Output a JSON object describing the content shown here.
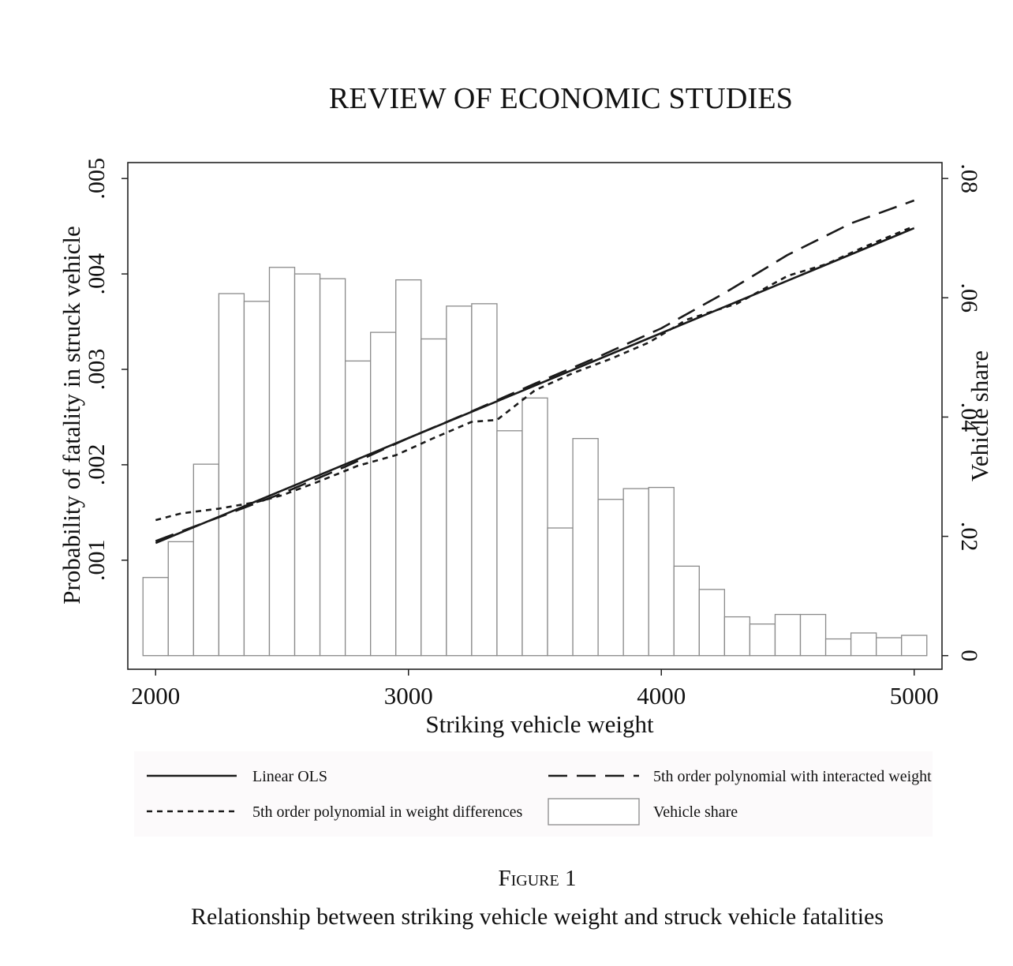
{
  "header": {
    "journal_title": "REVIEW OF ECONOMIC STUDIES"
  },
  "figure": {
    "number": "Figure 1",
    "caption": "Relationship between striking vehicle weight and struck vehicle fatalities"
  },
  "chart_data": {
    "type": "bar",
    "xlabel": "Striking vehicle weight",
    "ylabel_left": "Probability of fatality in struck vehicle",
    "ylabel_right": "Vehicle share",
    "xlim": [
      1890,
      5110
    ],
    "ylim_left": [
      -0.000143,
      0.005167
    ],
    "ylim_right": [
      -0.002286,
      0.082667
    ],
    "x_ticks": [
      2000,
      3000,
      4000,
      5000
    ],
    "x_tick_labels": [
      "2000",
      "3000",
      "4000",
      "5000"
    ],
    "y_left_ticks": [
      0.001,
      0.002,
      0.003,
      0.004,
      0.005
    ],
    "y_left_tick_labels": [
      ".001",
      ".002",
      ".003",
      ".004",
      ".005"
    ],
    "y_right_ticks": [
      0,
      0.02,
      0.04,
      0.06,
      0.08
    ],
    "y_right_tick_labels": [
      "0",
      ".02",
      ".04",
      ".06",
      ".08"
    ],
    "histogram": {
      "name": "Vehicle share",
      "bin_width": 100,
      "bin_starts": [
        1950,
        2050,
        2150,
        2250,
        2350,
        2450,
        2550,
        2650,
        2750,
        2850,
        2950,
        3050,
        3150,
        3250,
        3350,
        3450,
        3550,
        3650,
        3750,
        3850,
        3950,
        4050,
        4150,
        4250,
        4350,
        4450,
        4550,
        4650,
        4750,
        4850,
        4950
      ],
      "values": [
        0.0131,
        0.0191,
        0.0321,
        0.0607,
        0.0594,
        0.0651,
        0.064,
        0.0632,
        0.0494,
        0.0542,
        0.063,
        0.0531,
        0.0586,
        0.059,
        0.0377,
        0.0432,
        0.0214,
        0.0364,
        0.0262,
        0.028,
        0.0282,
        0.015,
        0.0111,
        0.0065,
        0.0053,
        0.0069,
        0.0069,
        0.0028,
        0.0038,
        0.003,
        0.0034
      ]
    },
    "series": [
      {
        "name": "Linear OLS",
        "style": "solid",
        "x": [
          2000,
          5000
        ],
        "y": [
          0.00118,
          0.00448
        ]
      },
      {
        "name": "5th order polynomial with interacted weight",
        "style": "longdash",
        "x": [
          2000,
          2250,
          2500,
          2750,
          3000,
          3250,
          3500,
          3750,
          4000,
          4250,
          4500,
          4750,
          5000
        ],
        "y": [
          0.0012,
          0.00145,
          0.0017,
          0.00198,
          0.00228,
          0.00256,
          0.00285,
          0.00313,
          0.00343,
          0.0038,
          0.0042,
          0.00453,
          0.00477
        ]
      },
      {
        "name": "5th order polynomial in weight differences",
        "style": "shortdash",
        "x": [
          2000,
          2100,
          2250,
          2400,
          2500,
          2650,
          2800,
          2950,
          3100,
          3250,
          3350,
          3500,
          3650,
          3800,
          3950,
          4100,
          4300,
          4500,
          4650,
          4800,
          5000
        ],
        "y": [
          0.00142,
          0.00149,
          0.00154,
          0.00161,
          0.00168,
          0.00183,
          0.00199,
          0.0021,
          0.00228,
          0.00245,
          0.00247,
          0.00278,
          0.00296,
          0.00311,
          0.00328,
          0.00352,
          0.00369,
          0.00398,
          0.0041,
          0.00428,
          0.0045
        ]
      }
    ],
    "legend": {
      "placement": "bottom",
      "entries": [
        {
          "label": "Linear OLS",
          "style": "solid"
        },
        {
          "label": "5th order polynomial with interacted weight",
          "style": "longdash"
        },
        {
          "label": "5th order polynomial in weight differences",
          "style": "shortdash"
        },
        {
          "label": "Vehicle share",
          "style": "box"
        }
      ]
    }
  }
}
